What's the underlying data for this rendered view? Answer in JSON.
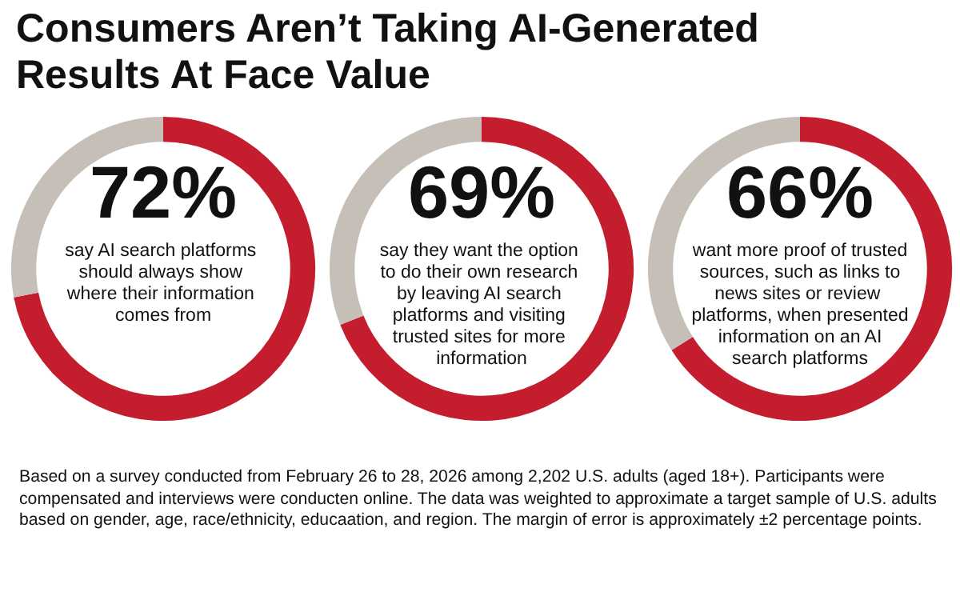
{
  "chart_data": [
    {
      "type": "donut",
      "title": "Consumers Aren’t Taking AI-Generated Results At Face Value",
      "categories": [
        null,
        null
      ],
      "values": [
        72,
        28
      ],
      "colors": [
        "#c41e2e",
        "#c5bfb8"
      ],
      "value_labels": [
        "72%",
        null
      ],
      "annotations": [
        "say AI search platforms should always show where their information comes from",
        "Based on a survey conducted from February 26 to 28, 2026 among 2,202 U.S. adults (aged 18+). Participants were compensated and interviews were conducten online. The data was weighted to approximate a target sample of U.S. adults based on gender, age, race/ethnicity, educaation, and region. The margin of error is approximately ±2 percentage points."
      ]
    },
    {
      "type": "donut",
      "categories": [
        null,
        null
      ],
      "values": [
        69,
        31
      ],
      "colors": [
        "#c41e2e",
        "#c5bfb8"
      ],
      "value_labels": [
        "69%",
        null
      ],
      "annotations": [
        "say they want the option to do their own research by leaving AI search platforms and visiting trusted sites for more information"
      ]
    },
    {
      "type": "donut",
      "categories": [
        null,
        null
      ],
      "values": [
        66,
        34
      ],
      "colors": [
        "#c41e2e",
        "#c5bfb8"
      ],
      "value_labels": [
        "66%",
        null
      ],
      "annotations": [
        "want more proof of trusted sources, such as links to news sites or review platforms, when presented information on an AI search platforms"
      ]
    }
  ]
}
